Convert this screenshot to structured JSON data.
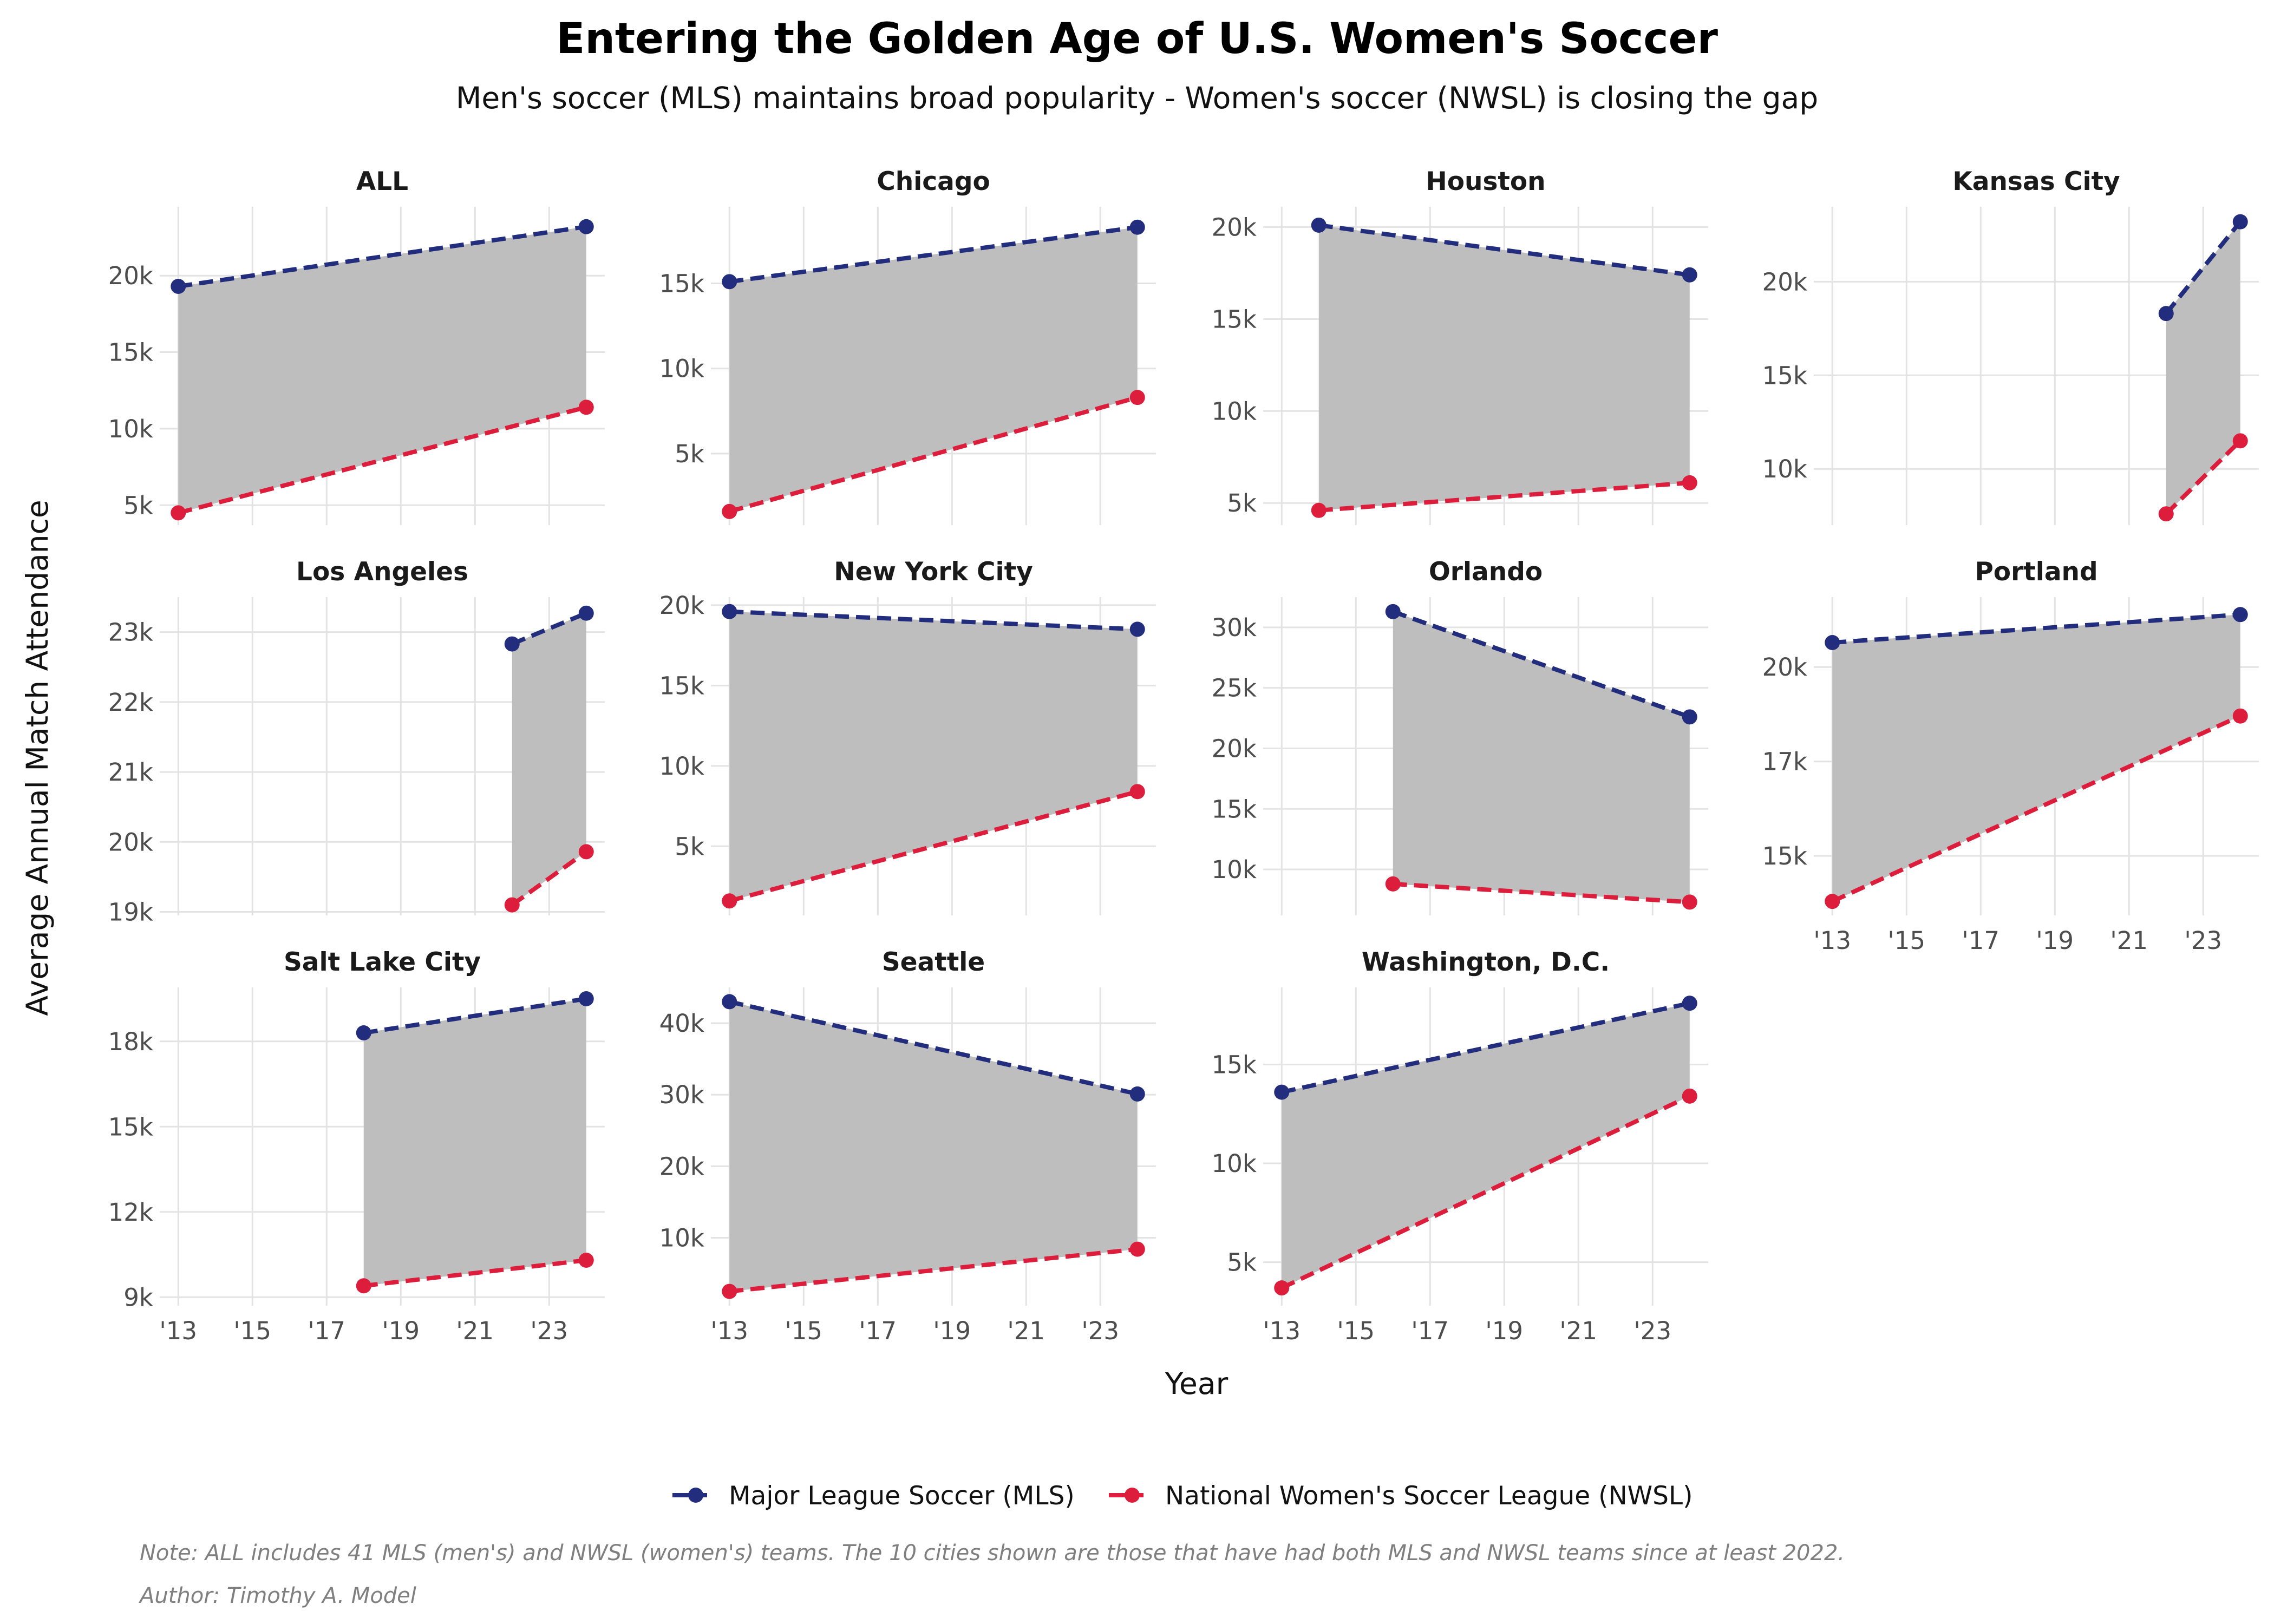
{
  "chart_data": {
    "type": "area",
    "title": "Entering the Golden Age of U.S. Women's Soccer",
    "subtitle": "Men's soccer (MLS) maintains broad popularity - Women's soccer (NWSL) is closing the gap",
    "xlabel": "Year",
    "ylabel": "Average Annual Match Attendance",
    "x_ticks": [
      2013,
      2015,
      2017,
      2019,
      2021,
      2023
    ],
    "x_tick_labels": [
      "'13",
      "'15",
      "'17",
      "'19",
      "'21",
      "'23"
    ],
    "xlim": [
      2012.5,
      2024.5
    ],
    "legend_position": "bottom",
    "series_styles": [
      {
        "name": "Major League Soccer (MLS)",
        "color": "#232d7d",
        "line": "dashed"
      },
      {
        "name": "National Women's Soccer League (NWSL)",
        "color": "#dc1e3c",
        "line": "dashed"
      }
    ],
    "fill_color": "#bebebe",
    "panels": [
      {
        "facet": "ALL",
        "x": [
          2013,
          2024
        ],
        "mls": [
          19300,
          23200
        ],
        "nwsl": [
          4500,
          11400
        ],
        "ylim": [
          3700,
          24500
        ],
        "yticks": [
          5000,
          10000,
          15000,
          20000
        ],
        "ytick_labels": [
          "5k",
          "10k",
          "15k",
          "20k"
        ]
      },
      {
        "facet": "Chicago",
        "x": [
          2013,
          2024
        ],
        "mls": [
          15100,
          18300
        ],
        "nwsl": [
          1600,
          8300
        ],
        "ylim": [
          800,
          19500
        ],
        "yticks": [
          5000,
          10000,
          15000
        ],
        "ytick_labels": [
          "5k",
          "10k",
          "15k"
        ]
      },
      {
        "facet": "Houston",
        "x": [
          2014,
          2024
        ],
        "mls": [
          20100,
          17400
        ],
        "nwsl": [
          4600,
          6100
        ],
        "ylim": [
          3800,
          21100
        ],
        "yticks": [
          5000,
          10000,
          15000,
          20000
        ],
        "ytick_labels": [
          "5k",
          "10k",
          "15k",
          "20k"
        ]
      },
      {
        "facet": "Kansas City",
        "x": [
          2022,
          2024
        ],
        "mls": [
          18300,
          23200
        ],
        "nwsl": [
          7600,
          11500
        ],
        "ylim": [
          7000,
          24000
        ],
        "yticks": [
          10000,
          15000,
          20000
        ],
        "ytick_labels": [
          "10k",
          "15k",
          "20k"
        ]
      },
      {
        "facet": "Los Angeles",
        "x": [
          2022,
          2024
        ],
        "mls": [
          22830,
          23270
        ],
        "nwsl": [
          19100,
          19860
        ],
        "ylim": [
          18950,
          23500
        ],
        "yticks": [
          19000,
          20000,
          21000,
          22000,
          23000
        ],
        "ytick_labels": [
          "19k",
          "20k",
          "21k",
          "22k",
          "23k"
        ]
      },
      {
        "facet": "New York City",
        "x": [
          2013,
          2024
        ],
        "mls": [
          19600,
          18500
        ],
        "nwsl": [
          1600,
          8400
        ],
        "ylim": [
          700,
          20500
        ],
        "yticks": [
          5000,
          10000,
          15000,
          20000
        ],
        "ytick_labels": [
          "5k",
          "10k",
          "15k",
          "20k"
        ]
      },
      {
        "facet": "Orlando",
        "x": [
          2016,
          2024
        ],
        "mls": [
          31300,
          22600
        ],
        "nwsl": [
          8800,
          7300
        ],
        "ylim": [
          6200,
          32500
        ],
        "yticks": [
          10000,
          15000,
          20000,
          25000,
          30000
        ],
        "ytick_labels": [
          "10k",
          "15k",
          "20k",
          "25k",
          "30k"
        ]
      },
      {
        "facet": "Portland",
        "x": [
          2013,
          2024
        ],
        "mls": [
          20700,
          21500
        ],
        "nwsl": [
          13300,
          18600
        ],
        "ylim": [
          12900,
          22000
        ],
        "yticks": [
          14600,
          17300,
          20000
        ],
        "ytick_labels": [
          "15k",
          "17k",
          "20k"
        ]
      },
      {
        "facet": "Salt Lake City",
        "x": [
          2018,
          2024
        ],
        "mls": [
          18300,
          19500
        ],
        "nwsl": [
          9400,
          10300
        ],
        "ylim": [
          8700,
          19900
        ],
        "yticks": [
          9000,
          12000,
          15000,
          18000
        ],
        "ytick_labels": [
          "9k",
          "12k",
          "15k",
          "18k"
        ]
      },
      {
        "facet": "Seattle",
        "x": [
          2013,
          2024
        ],
        "mls": [
          43000,
          30100
        ],
        "nwsl": [
          2500,
          8400
        ],
        "ylim": [
          500,
          45000
        ],
        "yticks": [
          10000,
          20000,
          30000,
          40000
        ],
        "ytick_labels": [
          "10k",
          "20k",
          "30k",
          "40k"
        ]
      },
      {
        "facet": "Washington, D.C.",
        "x": [
          2013,
          2024
        ],
        "mls": [
          13600,
          18100
        ],
        "nwsl": [
          3700,
          13400
        ],
        "ylim": [
          2800,
          18900
        ],
        "yticks": [
          5000,
          10000,
          15000
        ],
        "ytick_labels": [
          "5k",
          "10k",
          "15k"
        ]
      }
    ],
    "legend": [
      {
        "label": "Major League Soccer (MLS)",
        "color": "#232d7d"
      },
      {
        "label": "National Women's Soccer League (NWSL)",
        "color": "#dc1e3c"
      }
    ],
    "notes": [
      "Note: ALL includes 41 MLS (men's) and NWSL (women's) teams. The 10 cities shown are those that have had both MLS and NWSL teams since at least 2022.",
      "Author: Timothy A. Model"
    ]
  }
}
